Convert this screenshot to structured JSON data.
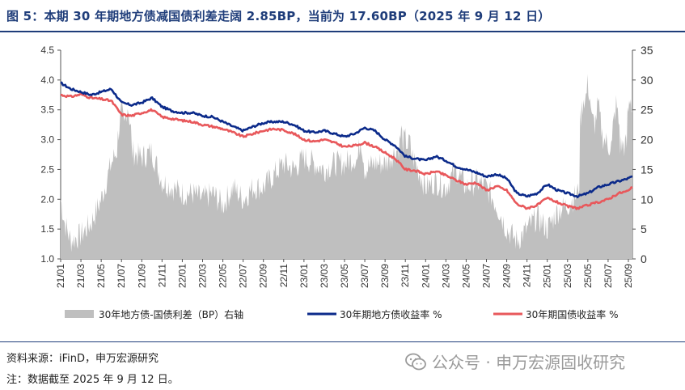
{
  "title": "图 5：本期 30 年期地方债减国债利差走阔 2.85BP，当前为 17.60BP（2025 年 9 月 12 日）",
  "source": "资料来源：iFinD，申万宏源研究",
  "note": "注：数据截至 2025 年 9 月 12 日。",
  "watermark": "公众号 · 申万宏源固收研究",
  "colors": {
    "spread": "#bfbfbf",
    "local": "#0b2a8a",
    "treasury": "#e8585b",
    "accent": "#1f3d7a"
  },
  "chart_data": {
    "type": "line",
    "title": "本期 30 年期地方债减国债利差走阔 2.85BP，当前为 17.60BP",
    "x_ticks": [
      "21/01",
      "21/03",
      "21/05",
      "21/07",
      "21/09",
      "21/11",
      "22/01",
      "22/03",
      "22/05",
      "22/07",
      "22/09",
      "22/11",
      "23/01",
      "23/03",
      "23/05",
      "23/07",
      "23/09",
      "23/11",
      "24/01",
      "24/03",
      "24/05",
      "24/07",
      "24/09",
      "24/11",
      "25/01",
      "25/03",
      "25/05",
      "25/07",
      "25/09"
    ],
    "y_left": {
      "range": [
        1.0,
        4.5
      ],
      "ticks": [
        "1.0",
        "1.5",
        "2.0",
        "2.5",
        "3.0",
        "3.5",
        "4.0",
        "4.5"
      ]
    },
    "y_right": {
      "range": [
        0,
        35
      ],
      "ticks": [
        "0",
        "5",
        "10",
        "15",
        "20",
        "25",
        "30",
        "35"
      ]
    },
    "series": [
      {
        "name": "30年地方债-国债利差（BP）右轴",
        "type": "area",
        "axis": "right",
        "x": [
          0,
          0.2,
          0.5,
          1,
          1.5,
          2,
          2.5,
          3,
          3.5,
          4,
          4.5,
          5,
          5.5,
          6,
          6.5,
          7,
          7.5,
          8,
          8.5,
          9,
          9.5,
          10,
          10.5,
          11,
          11.5,
          12,
          12.5,
          13,
          13.5,
          14,
          14.5,
          15,
          15.5,
          16,
          16.5,
          17,
          17.5,
          18,
          18.5,
          19,
          19.5,
          20,
          20.5,
          21,
          21.5,
          22,
          22.5,
          23,
          23.5,
          24,
          24.5,
          25,
          25.5,
          26,
          26.5,
          27,
          27.5,
          28,
          28.2
        ],
        "values": [
          10,
          6,
          3,
          4,
          6,
          10,
          16,
          20,
          18,
          17,
          18,
          13,
          12,
          11,
          11,
          10,
          11,
          9,
          12,
          10,
          12,
          12,
          14,
          16,
          15,
          17,
          16,
          15,
          16,
          16,
          17,
          15,
          16,
          16,
          18,
          20,
          16,
          12,
          13,
          12,
          15,
          12,
          13,
          12,
          9,
          5,
          3,
          5,
          7,
          5,
          8,
          9,
          11,
          24,
          22,
          19,
          19,
          19,
          18
        ],
        "spikes": [
          [
            3.0,
            25
          ],
          [
            3.3,
            26
          ],
          [
            14.8,
            20.5
          ],
          [
            16.8,
            21.5
          ],
          [
            17.2,
            20
          ],
          [
            25.8,
            27.5
          ],
          [
            26.0,
            29.5
          ],
          [
            26.5,
            26
          ],
          [
            27.4,
            26
          ],
          [
            28.1,
            27.5
          ]
        ]
      },
      {
        "name": "30年期地方债收益率 %",
        "type": "line",
        "axis": "left",
        "x": [
          0,
          0.5,
          1,
          1.5,
          2,
          2.5,
          3,
          3.5,
          4,
          4.5,
          5,
          5.5,
          6,
          6.5,
          7,
          7.5,
          8,
          8.5,
          9,
          9.5,
          10,
          10.5,
          11,
          11.5,
          12,
          12.5,
          13,
          13.5,
          14,
          14.5,
          15,
          15.5,
          16,
          16.5,
          17,
          17.5,
          18,
          18.5,
          19,
          19.5,
          20,
          20.5,
          21,
          21.5,
          22,
          22.5,
          23,
          23.5,
          24,
          24.5,
          25,
          25.5,
          26,
          26.5,
          27,
          27.5,
          28,
          28.2
        ],
        "values": [
          3.95,
          3.85,
          3.8,
          3.75,
          3.8,
          3.85,
          3.62,
          3.58,
          3.62,
          3.7,
          3.55,
          3.48,
          3.45,
          3.45,
          3.4,
          3.38,
          3.3,
          3.22,
          3.15,
          3.22,
          3.28,
          3.3,
          3.3,
          3.25,
          3.15,
          3.12,
          3.15,
          3.1,
          3.05,
          3.1,
          3.2,
          3.15,
          3.0,
          2.9,
          2.72,
          2.68,
          2.65,
          2.72,
          2.65,
          2.55,
          2.5,
          2.45,
          2.38,
          2.42,
          2.35,
          2.1,
          2.05,
          2.1,
          2.25,
          2.15,
          2.1,
          2.05,
          2.1,
          2.2,
          2.25,
          2.3,
          2.35,
          2.38
        ]
      },
      {
        "name": "30年期国债收益率 %",
        "type": "line",
        "axis": "left",
        "x": [
          0,
          0.5,
          1,
          1.5,
          2,
          2.5,
          3,
          3.5,
          4,
          4.5,
          5,
          5.5,
          6,
          6.5,
          7,
          7.5,
          8,
          8.5,
          9,
          9.5,
          10,
          10.5,
          11,
          11.5,
          12,
          12.5,
          13,
          13.5,
          14,
          14.5,
          15,
          15.5,
          16,
          16.5,
          17,
          17.5,
          18,
          18.5,
          19,
          19.5,
          20,
          20.5,
          21,
          21.5,
          22,
          22.5,
          23,
          23.5,
          24,
          24.5,
          25,
          25.5,
          26,
          26.5,
          27,
          27.5,
          28,
          28.2
        ],
        "values": [
          3.75,
          3.72,
          3.76,
          3.7,
          3.68,
          3.65,
          3.42,
          3.4,
          3.45,
          3.5,
          3.38,
          3.35,
          3.32,
          3.3,
          3.25,
          3.22,
          3.18,
          3.12,
          3.05,
          3.1,
          3.15,
          3.18,
          3.16,
          3.1,
          3.0,
          2.97,
          3.0,
          2.95,
          2.88,
          2.9,
          2.95,
          2.88,
          2.78,
          2.68,
          2.5,
          2.48,
          2.42,
          2.47,
          2.4,
          2.32,
          2.25,
          2.28,
          2.15,
          2.22,
          2.15,
          1.92,
          1.85,
          1.9,
          2.02,
          1.95,
          1.88,
          1.85,
          1.9,
          1.95,
          2.0,
          2.1,
          2.14,
          2.2
        ]
      }
    ],
    "legend": [
      "30年地方债-国债利差（BP）右轴",
      "30年期地方债收益率 %",
      "30年期国债收益率 %"
    ],
    "legend_position": "bottom"
  }
}
